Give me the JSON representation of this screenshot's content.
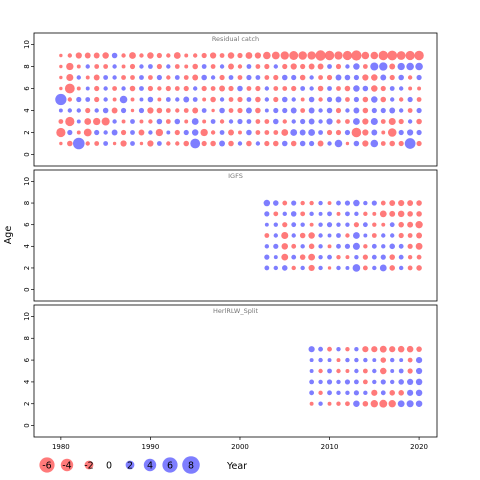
{
  "chart_data": {
    "type": "scatter",
    "subtype": "bubble residual plot",
    "ylabel": "Age",
    "xlabel": "Year",
    "xlim": [
      1977,
      2022
    ],
    "xticks": [
      1980,
      1990,
      2000,
      2010,
      2020
    ],
    "ylim": [
      -0.5,
      10.5
    ],
    "yticks": [
      0,
      2,
      4,
      6,
      8,
      10
    ],
    "grid": false,
    "colors": {
      "positive": "#7070ff",
      "negative": "#ff6b6b"
    },
    "legend": {
      "placement": "bottom-left",
      "values": [
        -6,
        -4,
        -2,
        0,
        2,
        4,
        6,
        8
      ],
      "labels": [
        "-6",
        "-4",
        "-2",
        "0",
        "2",
        "4",
        "6",
        "8"
      ]
    },
    "panels": [
      {
        "title": "Residual catch",
        "years": [
          1980,
          2020
        ],
        "ages": [
          1,
          9
        ],
        "residuals": [
          [
            -0.3,
            -0.8,
            3.5,
            -0.5,
            -0.6,
            0.6,
            -0.3,
            -1,
            0.6,
            -0.3,
            -1,
            0.6,
            -0.5,
            -0.5,
            -0.8,
            2.5,
            -0.7,
            -0.8,
            0.9,
            -0.8,
            0.5,
            -0.8,
            0.5,
            -0.7,
            -0.8,
            0.8,
            -0.8,
            0.8,
            0.7,
            -0.9,
            0.5,
            1.5,
            -0.3,
            0.8,
            -1,
            1.5,
            -0.6,
            -0.8,
            -0.7,
            3,
            -0.7
          ],
          [
            -2.2,
            0.7,
            -0.4,
            -1.6,
            0.7,
            0.5,
            0.9,
            -0.7,
            0.6,
            -0.9,
            0.5,
            -1.4,
            0.4,
            -0.7,
            0.7,
            1.1,
            -1.4,
            -0.5,
            0.6,
            -0.9,
            -0.4,
            0.8,
            -0.6,
            -0.6,
            -0.6,
            -1.2,
            1.2,
            0.9,
            1.2,
            0.6,
            -0.7,
            -0.7,
            0.7,
            -2.4,
            -1,
            0.9,
            -0.4,
            -1.9,
            0.7,
            1,
            0.7
          ],
          [
            -0.6,
            -2.2,
            0.4,
            -1.2,
            -1.4,
            -1.7,
            0.5,
            -0.4,
            0.6,
            -0.4,
            -0.5,
            0.8,
            -0.6,
            0.8,
            -0.4,
            1.2,
            -0.4,
            0.6,
            -0.5,
            0.5,
            0.7,
            0.6,
            -0.6,
            -0.6,
            0.8,
            -0.5,
            0.5,
            0.7,
            0.9,
            0.5,
            1,
            -0.5,
            -0.6,
            1.2,
            -1,
            1.3,
            -0.6,
            -1.3,
            -0.7,
            0.5,
            -0.8
          ],
          [
            0.4,
            0.5,
            0.5,
            -0.7,
            0.5,
            0.8,
            -0.9,
            0.7,
            -0.3,
            0.7,
            -1,
            -0.8,
            -0.6,
            -0.5,
            -0.6,
            -0.9,
            0.6,
            -0.3,
            0.8,
            -0.6,
            -0.7,
            0.9,
            -0.8,
            0.4,
            0.7,
            0.7,
            0.9,
            -0.6,
            0.9,
            0.5,
            0.8,
            -0.7,
            0.5,
            0.9,
            -0.8,
            0.7,
            0.7,
            0.9,
            0.5,
            -0.6,
            0.7
          ],
          [
            3.3,
            -0.5,
            0.7,
            0.6,
            -0.7,
            0.5,
            -0.4,
            1.5,
            -0.4,
            0.4,
            0.8,
            -0.4,
            0.6,
            0.5,
            0.9,
            0.6,
            -0.4,
            -0.8,
            0.5,
            -0.6,
            -0.7,
            0.6,
            -0.8,
            0.5,
            -0.7,
            0.8,
            0.5,
            -0.4,
            0.8,
            -0.5,
            0.7,
            0.9,
            -0.6,
            0.7,
            -0.8,
            1.1,
            -0.8,
            0.5,
            -0.5,
            0.7,
            -0.6
          ],
          [
            -0.3,
            -2.5,
            -0.4,
            0.4,
            -0.7,
            0.5,
            -0.6,
            0.5,
            -0.8,
            0.6,
            -0.7,
            -0.5,
            -0.7,
            -0.6,
            -0.7,
            0.5,
            -0.7,
            -0.6,
            -0.9,
            -0.7,
            0.8,
            -0.6,
            -0.7,
            0.5,
            -0.6,
            -0.6,
            -0.7,
            0.6,
            0.5,
            -0.8,
            0.6,
            -0.6,
            -0.8,
            1.1,
            0.8,
            -1.1,
            -0.7,
            0.6,
            0.5,
            -0.4,
            -0.4
          ],
          [
            -0.3,
            -1.3,
            0.5,
            -0.4,
            -0.9,
            0.6,
            0.5,
            -0.6,
            -0.6,
            0.6,
            -0.6,
            0.7,
            -0.5,
            0.6,
            -0.6,
            -0.9,
            0.8,
            0.5,
            -0.7,
            0.6,
            -0.6,
            0.7,
            0.6,
            -0.6,
            -0.7,
            0.8,
            0.7,
            -0.8,
            0.5,
            -0.6,
            -0.7,
            0.9,
            0.8,
            0.7,
            -1,
            -1.1,
            0.9,
            -0.7,
            0.8,
            -0.5,
            0.7
          ],
          [
            -0.3,
            -1.4,
            -0.4,
            0.5,
            -0.6,
            -0.6,
            0.5,
            -0.4,
            -0.7,
            0.5,
            0.6,
            -0.7,
            0.5,
            -0.6,
            -0.4,
            -0.8,
            0.6,
            -0.6,
            0.5,
            -0.9,
            -0.5,
            0.6,
            -0.6,
            -0.7,
            0.5,
            -0.7,
            -1,
            -0.7,
            -0.9,
            -0.9,
            0.6,
            -0.7,
            0.5,
            1.1,
            -0.6,
            1.7,
            1.8,
            -0.9,
            1.4,
            1.5,
            1.5
          ],
          [
            -0.3,
            -0.5,
            -1,
            -0.9,
            -0.9,
            -1.1,
            0.8,
            -0.5,
            -1.2,
            -0.5,
            -1.1,
            -0.7,
            -0.5,
            -1.2,
            -0.4,
            -0.5,
            -0.7,
            -1,
            -0.6,
            -1.1,
            -0.7,
            -1.2,
            -1,
            -1.5,
            -1.6,
            -1.8,
            -2.1,
            -1.9,
            -1.8,
            -2.8,
            -2.3,
            -1.8,
            -2.2,
            -2.7,
            -1.5,
            -1.5,
            -2.3,
            -2.5,
            -2,
            -2.2,
            -2.3
          ]
        ]
      },
      {
        "title": "IGFS",
        "years": [
          2003,
          2020
        ],
        "ages": [
          2,
          8
        ],
        "residuals": [
          [
            0.6,
            0.5,
            0.8,
            -0.5,
            0.5,
            -1,
            0.5,
            -0.3,
            0.5,
            0.4,
            1.5,
            -0.6,
            0.5,
            1.2,
            -0.8,
            0.5,
            -0.6,
            -0.8
          ],
          [
            0.7,
            0.4,
            -1.2,
            0.6,
            -0.8,
            -1.2,
            0.5,
            0.6,
            -0.5,
            -0.4,
            0.5,
            -0.7,
            0.6,
            0.7,
            -0.8,
            0.6,
            -0.5,
            -0.6
          ],
          [
            0.5,
            0.7,
            -1.1,
            -0.6,
            0.5,
            -0.8,
            0.5,
            -0.4,
            0.6,
            0.7,
            1.3,
            -0.5,
            0.6,
            0.5,
            0.8,
            0.6,
            -0.7,
            -1.2
          ],
          [
            -0.6,
            0.5,
            -1.3,
            0.5,
            -0.8,
            -1.1,
            0.5,
            0.4,
            0.6,
            -0.5,
            1.2,
            0.4,
            -0.6,
            0.5,
            0.5,
            -0.7,
            -0.6,
            -0.9
          ],
          [
            0.4,
            0.5,
            -0.7,
            0.6,
            0.5,
            -0.4,
            0.5,
            0.7,
            0.5,
            0.5,
            -0.7,
            0.6,
            -0.5,
            -0.4,
            0.6,
            -0.8,
            -0.9,
            -1.4
          ],
          [
            0.7,
            -0.6,
            0.5,
            0.8,
            -0.6,
            0.5,
            0.4,
            0.6,
            -0.4,
            0.6,
            0.5,
            -0.5,
            -0.4,
            -1.2,
            -0.9,
            -1.1,
            -0.8,
            -0.8
          ],
          [
            1.1,
            0.8,
            -0.6,
            0.7,
            -0.5,
            -0.5,
            0.5,
            -0.4,
            0.6,
            0.7,
            1.1,
            0.5,
            0.7,
            -0.6,
            -0.9,
            -1,
            -0.9,
            -0.8
          ]
        ]
      },
      {
        "title": "HerlRLW_Split",
        "years": [
          2008,
          2020
        ],
        "ages": [
          2,
          7
        ],
        "residuals": [
          [
            -0.4,
            0.5,
            -0.4,
            -0.5,
            -0.6,
            1.1,
            -0.8,
            -1.4,
            -1.6,
            -1.4,
            1.2,
            1.3,
            1.1
          ],
          [
            0.6,
            -0.5,
            0.6,
            0.5,
            0.5,
            0.7,
            0.5,
            -1,
            0.6,
            -0.8,
            -0.8,
            1,
            1.1
          ],
          [
            0.6,
            0.5,
            0.7,
            0.5,
            0.7,
            0.6,
            -0.6,
            0.5,
            0.7,
            0.5,
            0.8,
            1,
            1.1
          ],
          [
            0.4,
            -0.5,
            0.6,
            -0.5,
            -0.4,
            0.5,
            -0.6,
            0.5,
            -1.1,
            0.4,
            0.6,
            -0.7,
            1
          ],
          [
            0.4,
            0.5,
            0.4,
            -0.4,
            0.5,
            0.5,
            0.5,
            0.4,
            -0.8,
            0.5,
            0.4,
            -0.6,
            1
          ],
          [
            1,
            0.6,
            -0.6,
            0.5,
            -0.5,
            0.5,
            -1,
            -1,
            -1.2,
            -1,
            -1.1,
            -1.1,
            -0.8
          ]
        ]
      }
    ]
  }
}
